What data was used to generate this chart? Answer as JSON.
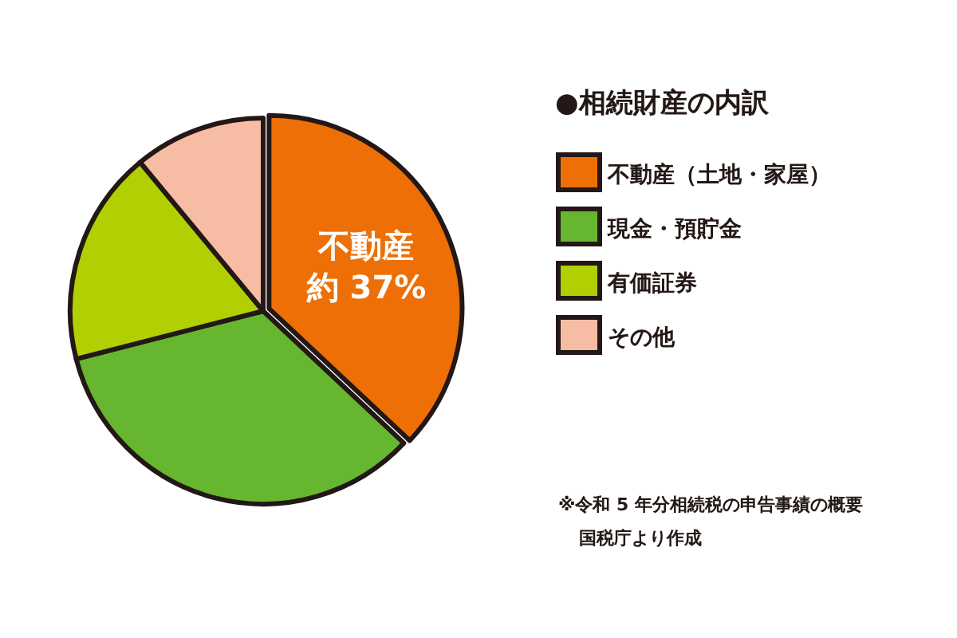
{
  "chart_data": {
    "type": "pie",
    "legend_title": "●相続財産の内訳",
    "categories": [
      "不動産（土地・家屋）",
      "現金・預貯金",
      "有価証券",
      "その他"
    ],
    "values": [
      37,
      34,
      18,
      11
    ],
    "colors": [
      "#ee6f06",
      "#66b72f",
      "#b2cf04",
      "#f6bca4"
    ],
    "value_labels": [
      "約 37%",
      null,
      null,
      null
    ],
    "legend": "right",
    "annotations": [
      {
        "text": "不動産",
        "x": "不動産（土地・家屋）"
      },
      "※令和 5 年分相続税の申告事績の概要",
      "国税庁より作成"
    ]
  }
}
